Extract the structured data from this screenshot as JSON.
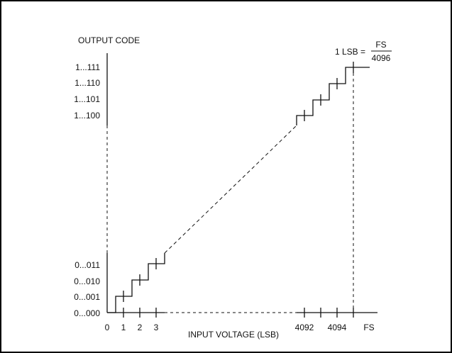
{
  "chart_data": {
    "type": "line",
    "title": "",
    "ylabel": "OUTPUT CODE",
    "xlabel": "INPUT VOLTAGE (LSB)",
    "lsb_formula": {
      "prefix": "1 LSB =",
      "numerator": "FS",
      "denominator": "4096"
    },
    "y_tick_labels_upper": [
      "1...111",
      "1...110",
      "1...101",
      "1...100"
    ],
    "y_tick_labels_lower": [
      "0...011",
      "0...010",
      "0...001",
      "0...000"
    ],
    "x_tick_labels_left": [
      "0",
      "1",
      "2",
      "3"
    ],
    "x_tick_labels_right": [
      "4092",
      "4094",
      "FS"
    ],
    "series": [
      {
        "x": [
          0.5,
          1.5,
          2.5
        ],
        "y": [
          1,
          2,
          3
        ],
        "style": "staircase"
      },
      {
        "x": [
          4092.5,
          4093.5,
          4094.5
        ],
        "y": [
          4092,
          4093,
          4094
        ],
        "style": "staircase"
      }
    ],
    "colors": {
      "line": "#111111",
      "frame": "#000000"
    }
  }
}
